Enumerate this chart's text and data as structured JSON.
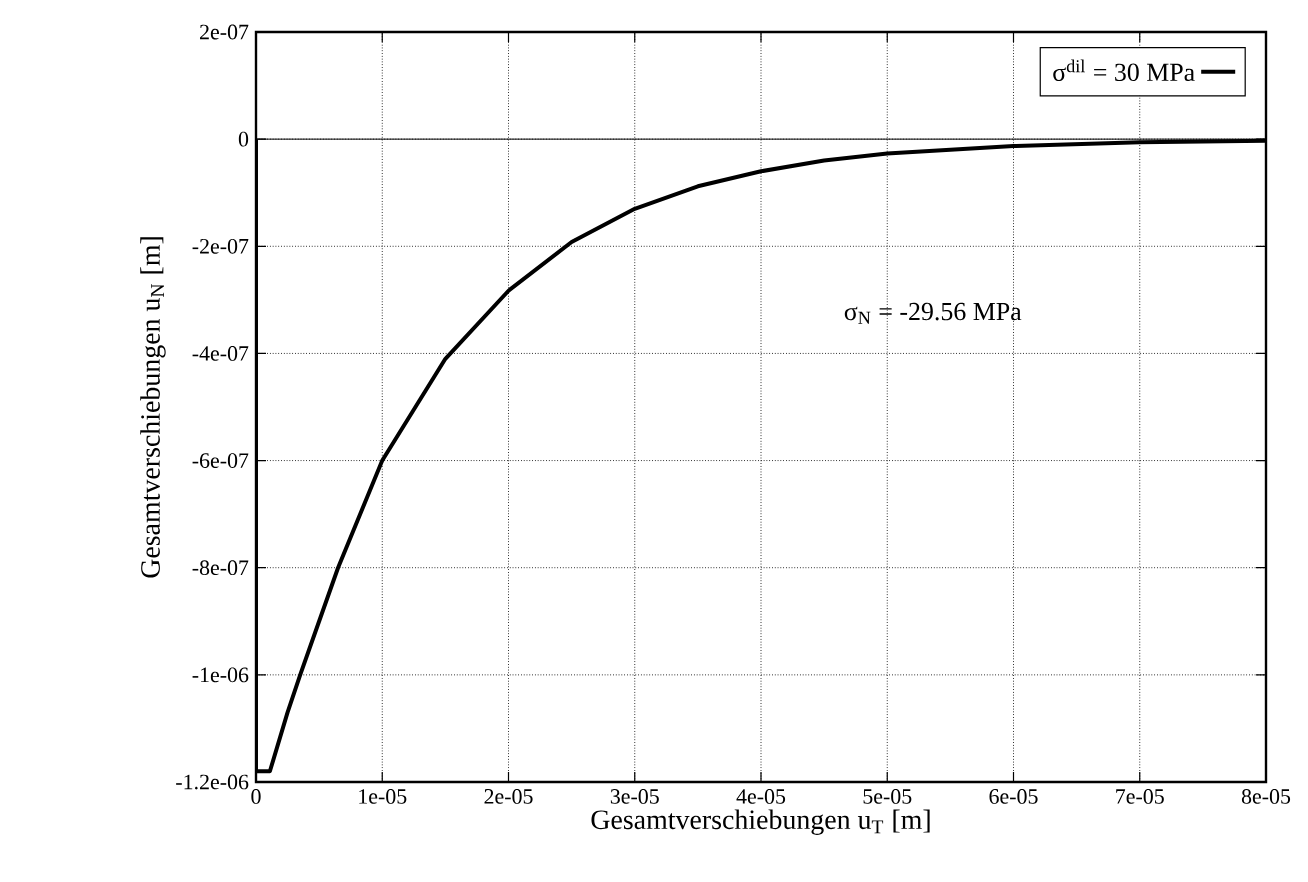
{
  "chart_data": {
    "type": "line",
    "xlabel": "Gesamtverschiebungen  u$_{T}$   [m]",
    "ylabel": "Gesamtverschiebungen  u$_{N}$   [m]",
    "x": [
      0,
      0,
      1.1e-06,
      2.5e-06,
      3.5e-06,
      5e-06,
      6.5e-06,
      1e-05,
      1.5e-05,
      2e-05,
      2.5e-05,
      3e-05,
      3.5e-05,
      4e-05,
      4.5e-05,
      5e-05,
      6e-05,
      7e-05,
      8e-05
    ],
    "series": [
      {
        "name": "σ$^{dil}$ = 30 MPa",
        "color": "#000000",
        "values": [
          0,
          -1.18e-06,
          -1.18e-06,
          -1.07e-06,
          -1e-06,
          -9e-07,
          -8e-07,
          -6e-07,
          -4.1e-07,
          -2.83e-07,
          -1.92e-07,
          -1.3e-07,
          -8.8e-08,
          -6e-08,
          -4e-08,
          -2.7e-08,
          -1.3e-08,
          -6e-09,
          -3e-09
        ]
      }
    ],
    "annotations": [
      "σ$_{N}$ = -29.56 MPa"
    ],
    "ref_lines": [
      {
        "axis": "y",
        "value": 0,
        "color": "#000000"
      }
    ],
    "xlim": [
      0,
      8e-05
    ],
    "xticks": [
      0,
      {
        "value": 1e-05,
        "label": "1e-05"
      },
      {
        "value": 2e-05,
        "label": "2e-05"
      },
      {
        "value": 3e-05,
        "label": "3e-05"
      },
      {
        "value": 4e-05,
        "label": "4e-05"
      },
      {
        "value": 5e-05,
        "label": "5e-05"
      },
      {
        "value": 6e-05,
        "label": "6e-05"
      },
      {
        "value": 7e-05,
        "label": "7e-05"
      },
      {
        "value": 8e-05,
        "label": "8e-05"
      }
    ],
    "ylim": [
      -1.2e-06,
      2e-07
    ],
    "yticks": [
      {
        "value": -1.2e-06,
        "label": "-1.2e-06"
      },
      {
        "value": -1e-06,
        "label": "-1e-06"
      },
      {
        "value": -8e-07,
        "label": "-8e-07"
      },
      {
        "value": -6e-07,
        "label": "-6e-07"
      },
      {
        "value": -4e-07,
        "label": "-4e-07"
      },
      {
        "value": -2e-07,
        "label": "-2e-07"
      },
      0,
      {
        "value": 2e-07,
        "label": "2e-07"
      }
    ],
    "grid": true,
    "legend": "top right",
    "marker": "none",
    "line_style": "solid"
  }
}
